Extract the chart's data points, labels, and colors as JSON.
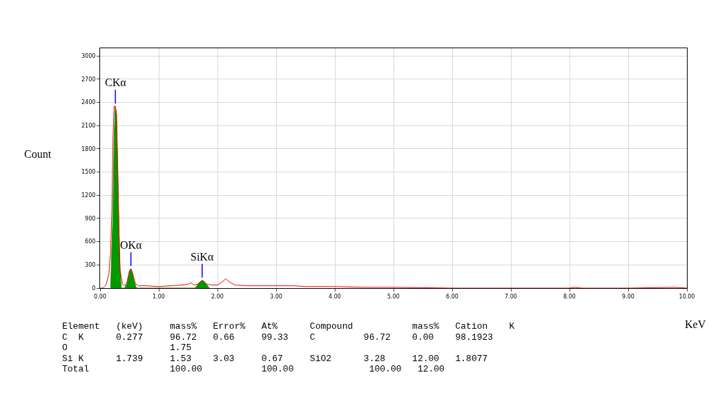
{
  "chart_data": {
    "type": "line",
    "xlabel": "KeV",
    "ylabel": "Count",
    "xlim": [
      0,
      10
    ],
    "xticks": [
      {
        "value": 0,
        "label": "0.00"
      },
      {
        "value": 1,
        "label": "1.00"
      },
      {
        "value": 2,
        "label": "2.00"
      },
      {
        "value": 3,
        "label": "3.00"
      },
      {
        "value": 4,
        "label": "4.00"
      },
      {
        "value": 5,
        "label": "5.00"
      },
      {
        "value": 6,
        "label": "6.00"
      },
      {
        "value": 7,
        "label": "7.00"
      },
      {
        "value": 8,
        "label": "8.00"
      },
      {
        "value": 9,
        "label": "9.00"
      },
      {
        "value": 10,
        "label": "10.00"
      }
    ],
    "ylim": [
      0,
      3100
    ],
    "yticks": [
      0,
      300,
      600,
      900,
      1200,
      1500,
      1800,
      2100,
      2400,
      2700,
      3000
    ],
    "grid": true,
    "series": [
      {
        "type": "area",
        "color": "#009900",
        "x": [
          0.18,
          0.2,
          0.22,
          0.24,
          0.26,
          0.28,
          0.3,
          0.32,
          0.34,
          0.36,
          0.42,
          0.46,
          0.5,
          0.525,
          0.55,
          0.58,
          0.62,
          1.62,
          1.66,
          1.7,
          1.74,
          1.78,
          1.82,
          1.86
        ],
        "values": [
          0,
          500,
          980,
          1960,
          2350,
          2240,
          1550,
          800,
          230,
          0,
          0,
          60,
          200,
          250,
          200,
          80,
          0,
          0,
          40,
          80,
          100,
          80,
          40,
          0
        ]
      },
      {
        "color": "#ff0000",
        "x": [
          0,
          0.05,
          0.1,
          0.15,
          0.18,
          0.2,
          0.22,
          0.24,
          0.26,
          0.28,
          0.3,
          0.32,
          0.34,
          0.38,
          0.42,
          0.46,
          0.5,
          0.525,
          0.55,
          0.6,
          0.65,
          0.8,
          1.0,
          1.2,
          1.4,
          1.5,
          1.55,
          1.6,
          1.66,
          1.74,
          1.82,
          1.9,
          2.0,
          2.08,
          2.14,
          2.2,
          2.3,
          2.5,
          2.8,
          3.0,
          3.3,
          3.5,
          4.0,
          4.5,
          5.0,
          6.0,
          7.0,
          8.0,
          8.1,
          8.2,
          9.0,
          9.8,
          10.0
        ],
        "values": [
          0,
          0,
          40,
          180,
          480,
          1000,
          1960,
          2350,
          2350,
          2240,
          1550,
          800,
          240,
          50,
          30,
          80,
          230,
          250,
          200,
          60,
          30,
          30,
          20,
          30,
          40,
          50,
          70,
          40,
          50,
          100,
          50,
          40,
          40,
          80,
          120,
          80,
          40,
          30,
          30,
          30,
          30,
          20,
          20,
          10,
          10,
          0,
          0,
          0,
          10,
          0,
          0,
          10,
          0
        ]
      }
    ],
    "annotations": [
      {
        "text": "CKα",
        "x": 0.26,
        "y": 2350
      },
      {
        "text": "OKα",
        "x": 0.525,
        "y": 250
      },
      {
        "text": "SiKα",
        "x": 1.739,
        "y": 100
      },
      "Element   (keV)     mass%   Error%   At%      Compound           mass%   Cation    K",
      "C  K      0.277     96.72   0.66     99.33    C         96.72    0.00    98.1923",
      "O                   1.75",
      "Si K      1.739     1.53    3.03     0.67     SiO2      3.28     12.00   1.8077",
      "Total               100.00           100.00              100.00   12.00"
    ]
  }
}
